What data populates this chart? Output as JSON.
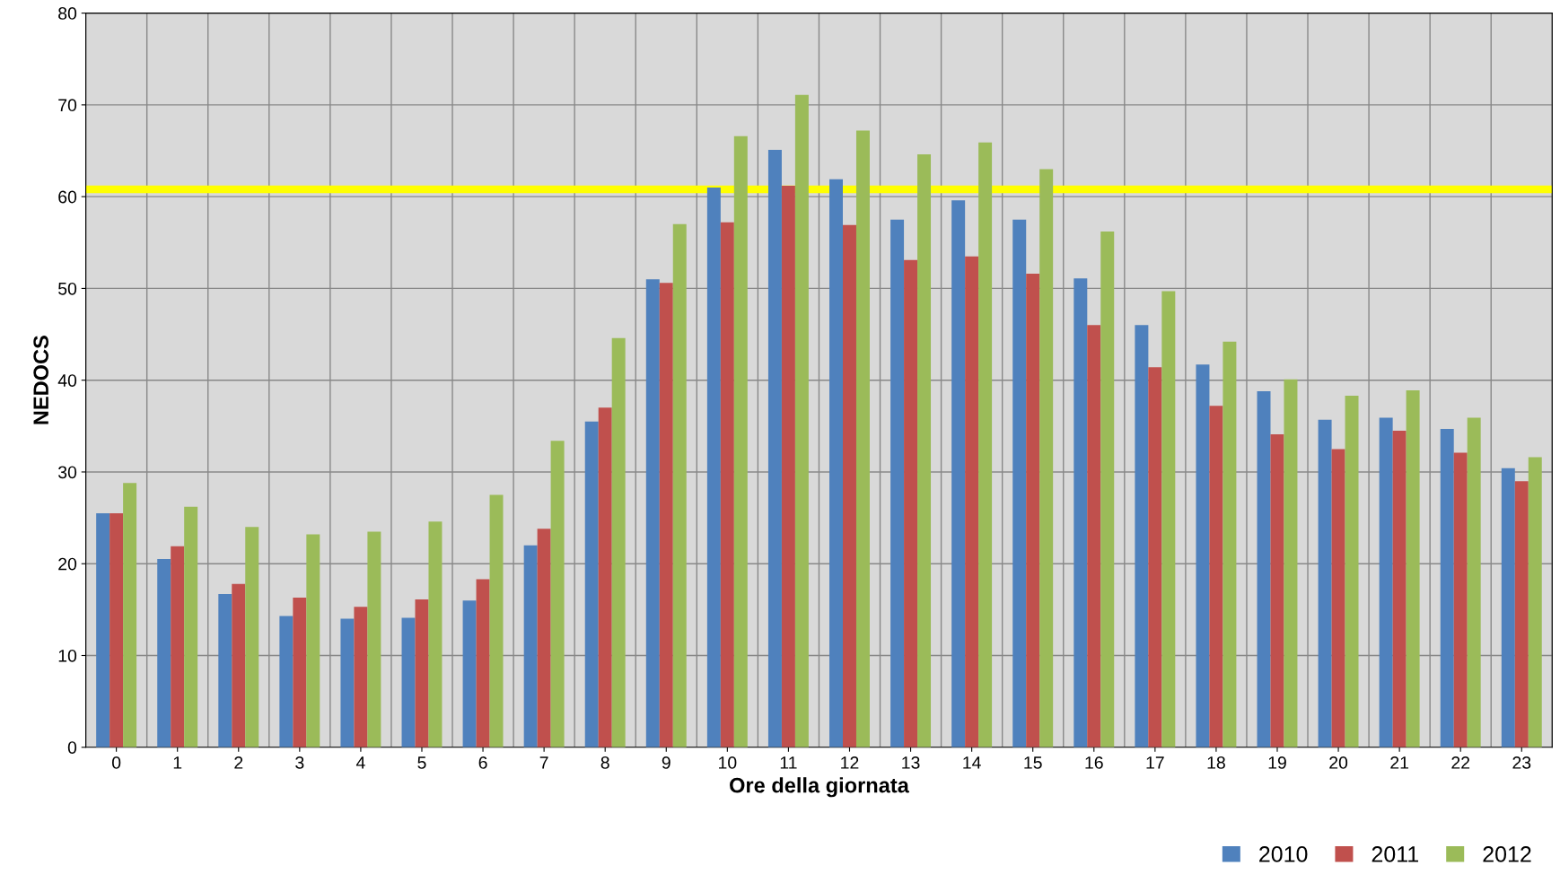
{
  "chart_data": {
    "type": "bar",
    "xlabel": "Ore della giornata",
    "ylabel": "NEDOCS",
    "categories": [
      "0",
      "1",
      "2",
      "3",
      "4",
      "5",
      "6",
      "7",
      "8",
      "9",
      "10",
      "11",
      "12",
      "13",
      "14",
      "15",
      "16",
      "17",
      "18",
      "19",
      "20",
      "21",
      "22",
      "23"
    ],
    "series": [
      {
        "name": "2010",
        "color": "#4f81bd",
        "values": [
          25.5,
          20.5,
          16.7,
          14.3,
          14.0,
          14.1,
          16.0,
          22.0,
          35.5,
          51.0,
          61.0,
          65.1,
          61.9,
          57.5,
          59.6,
          57.5,
          51.1,
          46.0,
          41.7,
          38.8,
          35.7,
          35.9,
          34.7,
          30.4
        ]
      },
      {
        "name": "2011",
        "color": "#c0504d",
        "values": [
          25.5,
          21.9,
          17.8,
          16.3,
          15.3,
          16.1,
          18.3,
          23.8,
          37.0,
          50.6,
          57.2,
          61.2,
          56.9,
          53.1,
          53.5,
          51.6,
          46.0,
          41.4,
          37.2,
          34.1,
          32.5,
          34.5,
          32.1,
          29.0
        ]
      },
      {
        "name": "2012",
        "color": "#9bbb59",
        "values": [
          28.8,
          26.2,
          24.0,
          23.2,
          23.5,
          24.6,
          27.5,
          33.4,
          44.6,
          57.0,
          66.6,
          71.1,
          67.2,
          64.6,
          65.9,
          63.0,
          56.2,
          49.7,
          44.2,
          40.1,
          38.3,
          38.9,
          35.9,
          31.6
        ]
      }
    ],
    "ylim": [
      0,
      80
    ],
    "yticks": [
      0,
      10,
      20,
      30,
      40,
      50,
      60,
      70,
      80
    ],
    "ref_lines": [
      {
        "axis": "y",
        "value": 60.8,
        "color": "#ffff00"
      }
    ],
    "grid": true,
    "legend": "bottom right"
  }
}
